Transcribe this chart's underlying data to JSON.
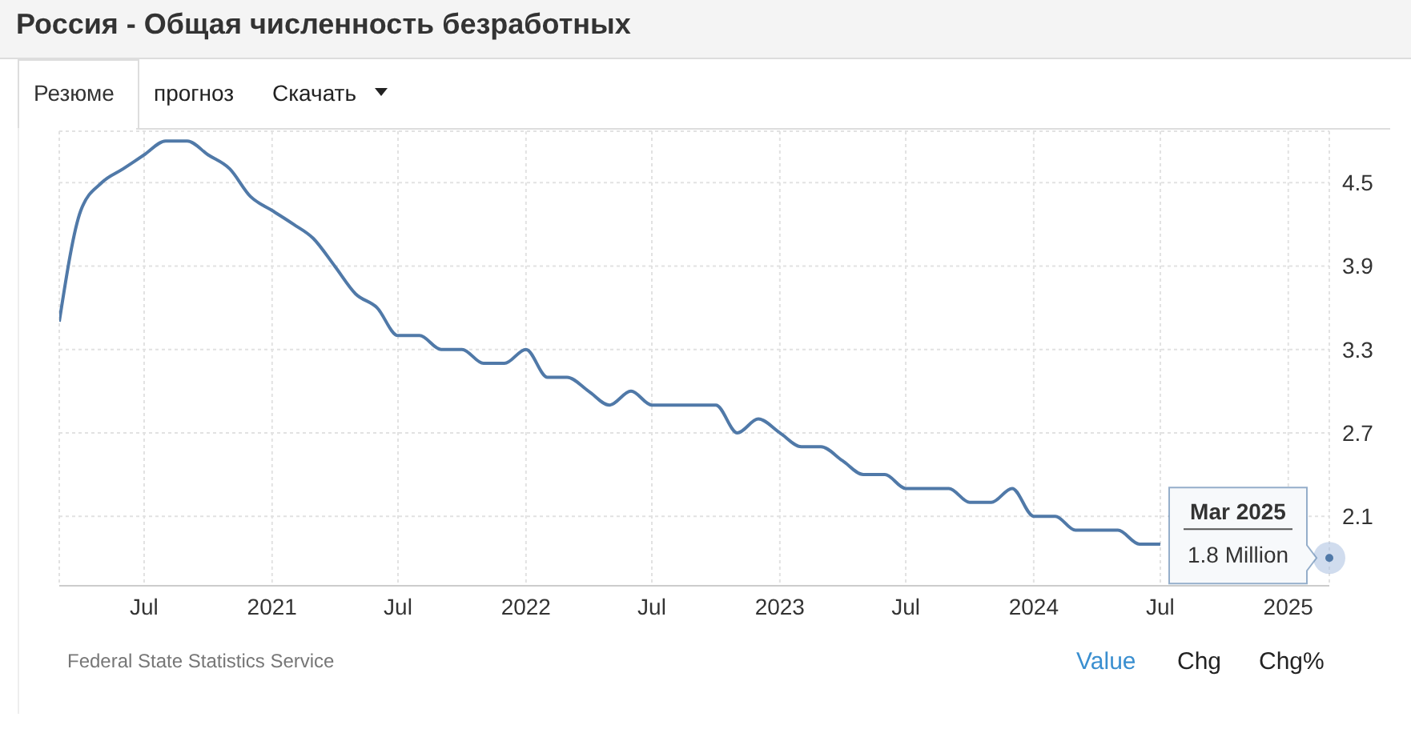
{
  "chart_data": {
    "type": "line",
    "title": "Россия - Общая численность безработных",
    "x": [
      "2020-03",
      "2020-04",
      "2020-05",
      "2020-06",
      "2020-07",
      "2020-08",
      "2020-09",
      "2020-10",
      "2020-11",
      "2020-12",
      "2021-01",
      "2021-02",
      "2021-03",
      "2021-04",
      "2021-05",
      "2021-06",
      "2021-07",
      "2021-08",
      "2021-09",
      "2021-10",
      "2021-11",
      "2021-12",
      "2022-01",
      "2022-02",
      "2022-03",
      "2022-04",
      "2022-05",
      "2022-06",
      "2022-07",
      "2022-08",
      "2022-09",
      "2022-10",
      "2022-11",
      "2022-12",
      "2023-01",
      "2023-02",
      "2023-03",
      "2023-04",
      "2023-05",
      "2023-06",
      "2023-07",
      "2023-08",
      "2023-09",
      "2023-10",
      "2023-11",
      "2023-12",
      "2024-01",
      "2024-02",
      "2024-03",
      "2024-04",
      "2024-05",
      "2024-06",
      "2024-07",
      "2024-08",
      "2024-09",
      "2024-10",
      "2024-11",
      "2024-12",
      "2025-01",
      "2025-02",
      "2025-03"
    ],
    "series": [
      {
        "color": "#5079a8",
        "values": [
          3.5,
          4.3,
          4.5,
          4.6,
          4.7,
          4.8,
          4.8,
          4.7,
          4.6,
          4.4,
          4.3,
          4.2,
          4.1,
          3.9,
          3.7,
          3.6,
          3.4,
          3.4,
          3.3,
          3.3,
          3.2,
          3.2,
          3.3,
          3.1,
          3.1,
          3.0,
          2.9,
          3.0,
          2.9,
          2.9,
          2.9,
          2.9,
          2.7,
          2.8,
          2.7,
          2.6,
          2.6,
          2.5,
          2.4,
          2.4,
          2.3,
          2.3,
          2.3,
          2.2,
          2.2,
          2.3,
          2.1,
          2.1,
          2.0,
          2.0,
          2.0,
          1.9,
          1.9,
          null,
          null,
          null,
          null,
          null,
          null,
          null,
          1.8
        ]
      }
    ],
    "xlim": [
      "2020-03",
      "2025-03"
    ],
    "xticks": [
      {
        "value": "2020-07",
        "label": "Jul"
      },
      {
        "value": "2021-01",
        "label": "2021"
      },
      {
        "value": "2021-07",
        "label": "Jul"
      },
      {
        "value": "2022-01",
        "label": "2022"
      },
      {
        "value": "2022-07",
        "label": "Jul"
      },
      {
        "value": "2023-01",
        "label": "2023"
      },
      {
        "value": "2023-07",
        "label": "Jul"
      },
      {
        "value": "2024-01",
        "label": "2024"
      },
      {
        "value": "2024-07",
        "label": "Jul"
      },
      {
        "value": "2025-01",
        "label": "2025"
      }
    ],
    "ylim": [
      1.6,
      4.87
    ],
    "yticks": [
      2.1,
      2.7,
      3.3,
      3.9,
      4.5
    ],
    "grid": true,
    "legend": false,
    "marker": "none",
    "line_style": "solid",
    "annotations": [
      "Резюме",
      "прогноз",
      "Скачать",
      "Federal State Statistics Service",
      "Value",
      "Chg",
      "Chg%",
      {
        "text": "Mar 2025",
        "x": "2025-03",
        "y": 1.8
      },
      {
        "text": "1.8 Million",
        "x": "2025-03",
        "y": 1.8
      }
    ]
  }
}
